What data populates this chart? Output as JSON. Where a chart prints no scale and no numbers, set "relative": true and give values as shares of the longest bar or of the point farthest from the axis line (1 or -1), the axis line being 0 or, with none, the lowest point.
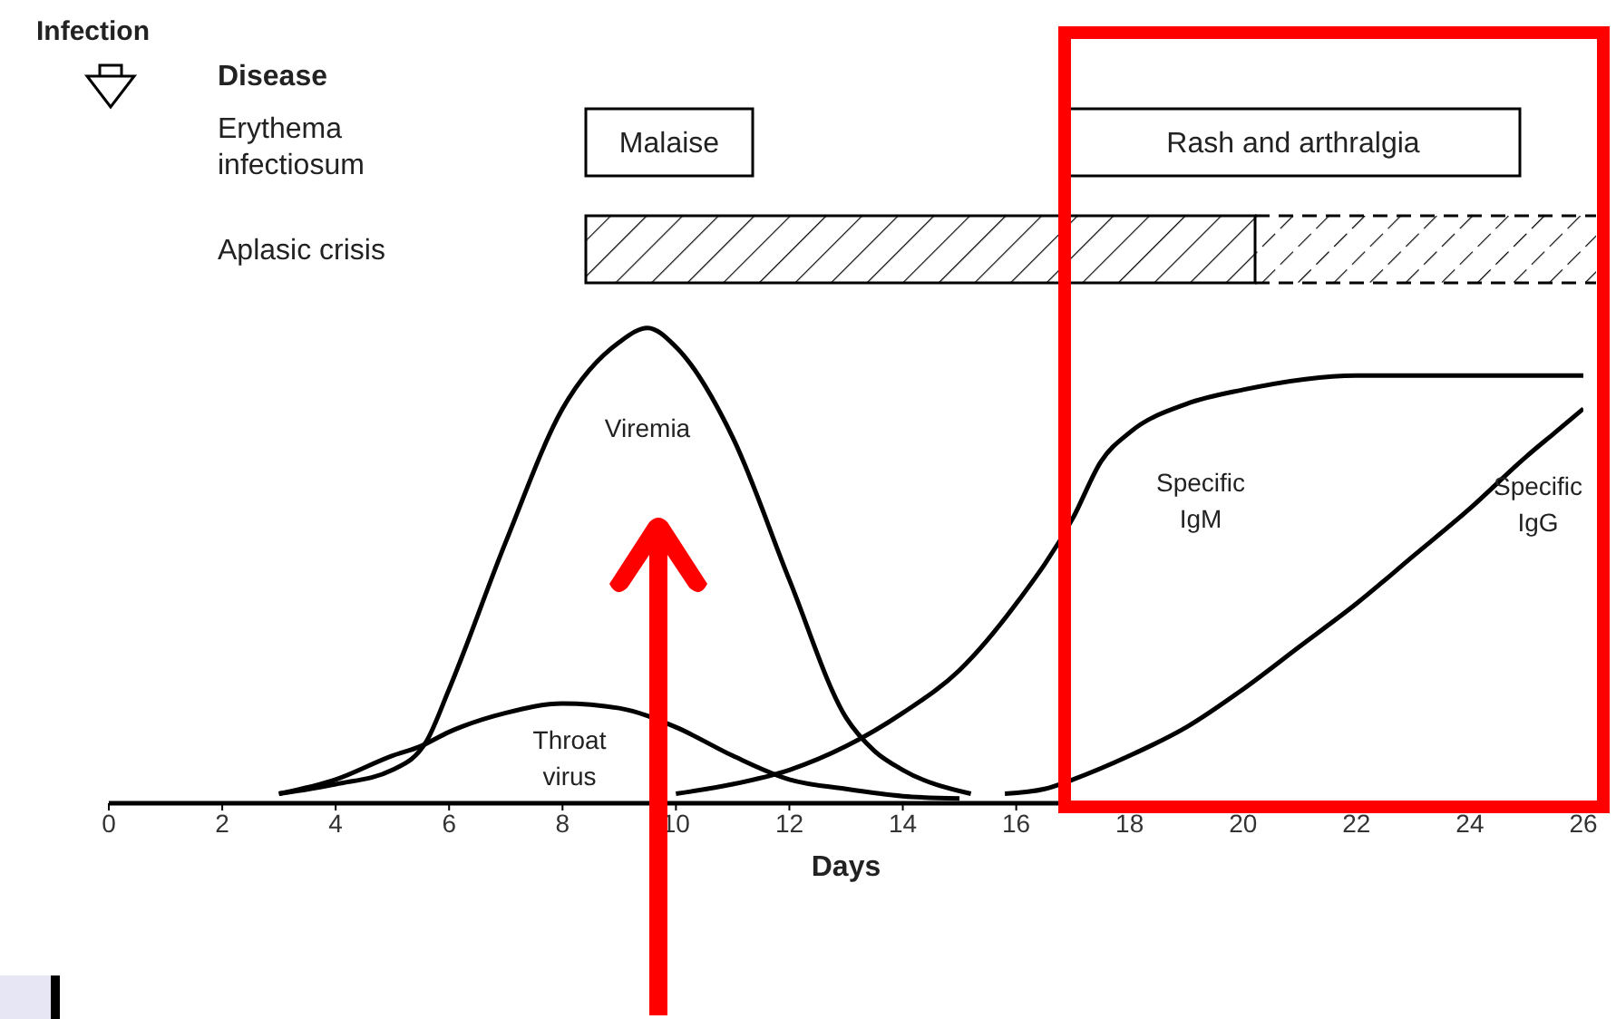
{
  "chart_data": {
    "type": "line",
    "relative": true,
    "xlabel": "Days",
    "xlim": [
      0,
      26
    ],
    "xticks": [
      0,
      2,
      4,
      6,
      8,
      10,
      12,
      14,
      16,
      18,
      20,
      22,
      24,
      26
    ],
    "series": [
      {
        "color": "#000000",
        "x": [
          3,
          4,
          5,
          5.6,
          6,
          7,
          8,
          9,
          9.5,
          10,
          11,
          12,
          13,
          13.5,
          14,
          15.2
        ],
        "values": [
          0.02,
          0.04,
          0.07,
          0.13,
          0.24,
          0.55,
          0.83,
          0.97,
          1,
          0.96,
          0.77,
          0.47,
          0.18,
          0.11,
          0.07,
          0.02
        ]
      },
      {
        "color": "#000000",
        "x": [
          3,
          4,
          5,
          5.5,
          6,
          7,
          8,
          9,
          10,
          11,
          12,
          13,
          14,
          15
        ],
        "values": [
          0.02,
          0.05,
          0.1,
          0.12,
          0.15,
          0.19,
          0.21,
          0.2,
          0.16,
          0.1,
          0.05,
          0.03,
          0.015,
          0.01
        ]
      },
      {
        "color": "#000000",
        "x": [
          10,
          11,
          12,
          13,
          14,
          15,
          16,
          17,
          17.5,
          18,
          19,
          20,
          22,
          24,
          26
        ],
        "values": [
          0.02,
          0.04,
          0.07,
          0.12,
          0.19,
          0.28,
          0.42,
          0.6,
          0.72,
          0.78,
          0.84,
          0.87,
          0.9,
          0.9,
          0.9
        ]
      },
      {
        "color": "#000000",
        "x": [
          15.8,
          16.5,
          17,
          18,
          19,
          20,
          21,
          22,
          23,
          24,
          25,
          25.5,
          26
        ],
        "values": [
          0.02,
          0.03,
          0.05,
          0.1,
          0.16,
          0.24,
          0.33,
          0.42,
          0.52,
          0.62,
          0.73,
          0.78,
          0.83
        ]
      }
    ],
    "annotations": [
      "Infection",
      "Disease",
      "Erythema infectiosum",
      "Aplasic crisis",
      "Malaise",
      "Rash and arthralgia",
      "Viremia",
      "Throat virus",
      "Specific IgM",
      "Specific IgG"
    ]
  }
}
